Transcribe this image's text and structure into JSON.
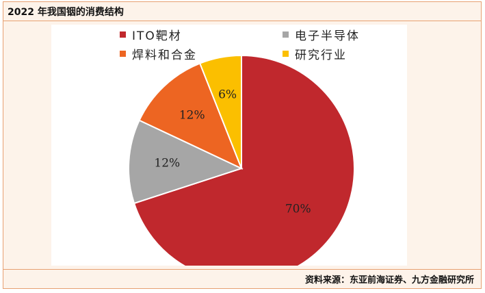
{
  "header": {
    "title": "2022 年我国铟的消费结构"
  },
  "footer": {
    "source": "资料来源：东亚前海证券、九方金融研究所"
  },
  "chart_data": {
    "type": "pie",
    "title": "",
    "slices": [
      {
        "label": "ITO靶材",
        "value": 70,
        "display": "70%",
        "color": "#c0282d"
      },
      {
        "label": "电子半导体",
        "value": 12,
        "display": "12%",
        "color": "#a6a6a6"
      },
      {
        "label": "焊料和合金",
        "value": 12,
        "display": "12%",
        "color": "#ed6522"
      },
      {
        "label": "研究行业",
        "value": 6,
        "display": "6%",
        "color": "#fbbf00"
      }
    ],
    "legend_position": "top",
    "start_angle_deg": 0,
    "direction": "clockwise"
  }
}
